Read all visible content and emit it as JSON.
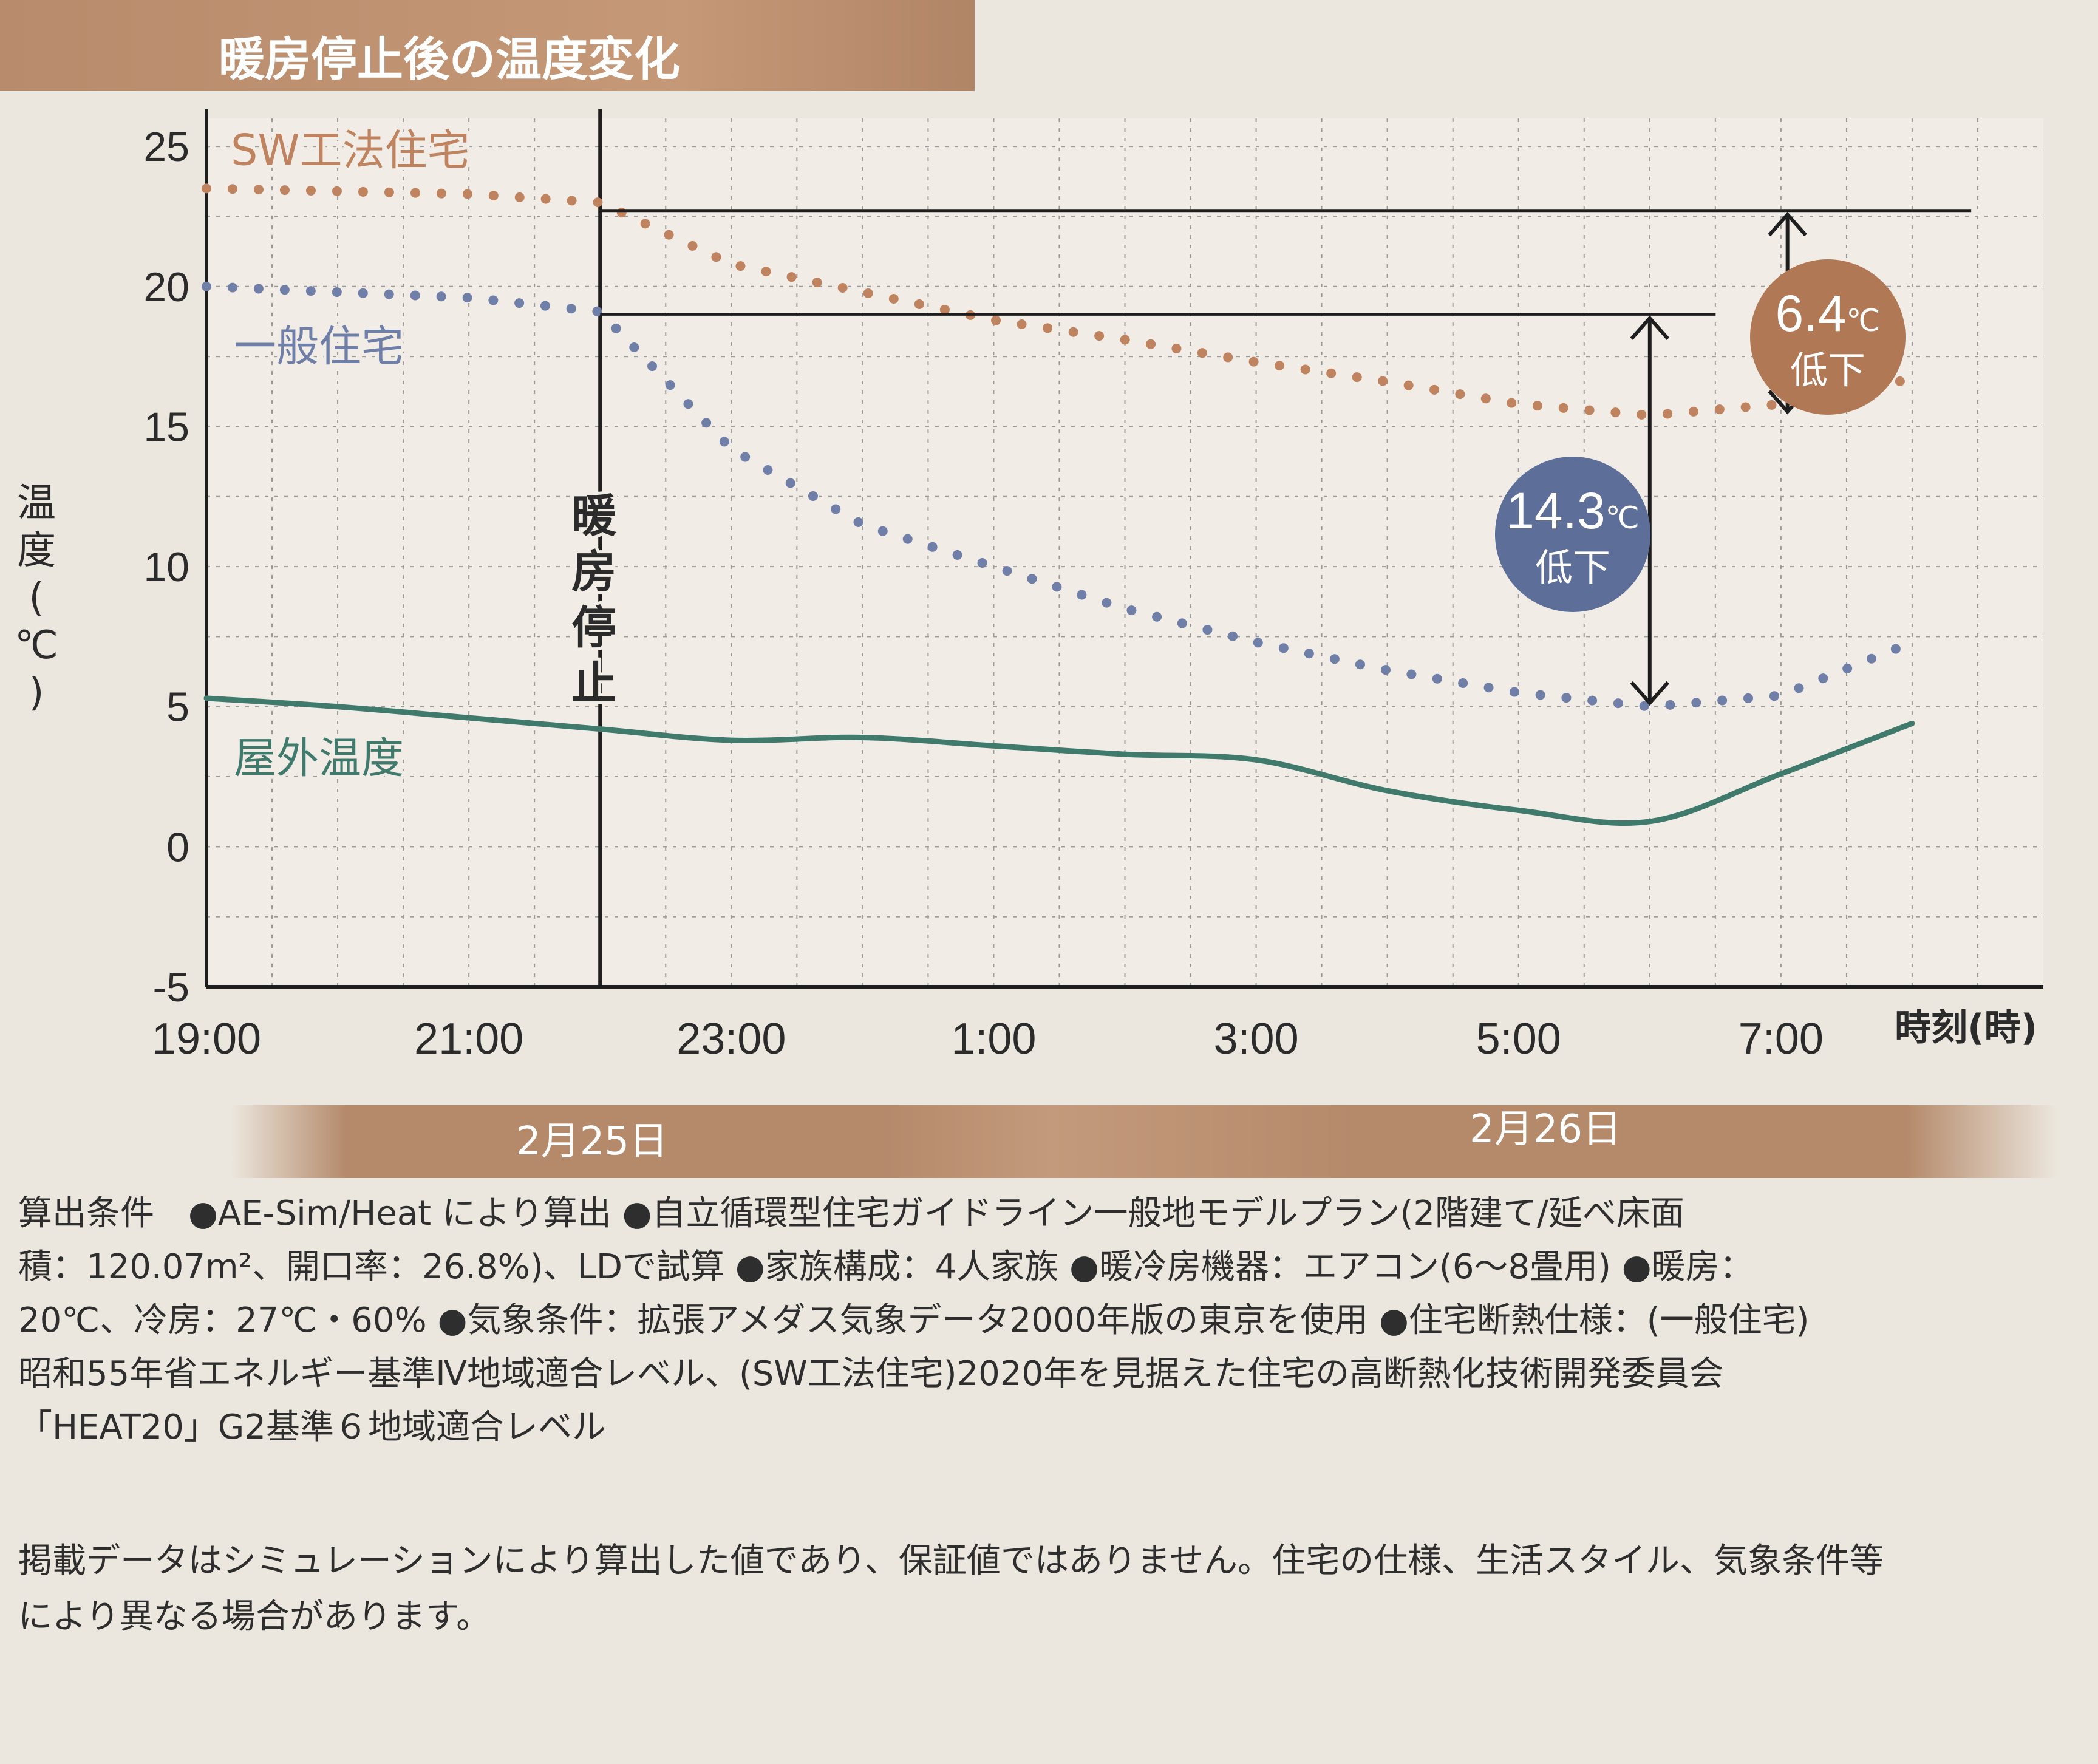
{
  "chart_data": {
    "type": "line",
    "title": "暖房停止後の温度変化",
    "ylabel": "温度(℃)",
    "xlabel": "時刻(時)",
    "ylim": [
      -5,
      26
    ],
    "xlim": [
      19,
      33
    ],
    "y_ticks": [
      "25",
      "20",
      "15",
      "10",
      "5",
      "0",
      "-5"
    ],
    "y_tick_values": [
      25,
      20,
      15,
      10,
      5,
      0,
      -5
    ],
    "x_ticks": [
      "19:00",
      "21:00",
      "23:00",
      "1:00",
      "3:00",
      "5:00",
      "7:00"
    ],
    "x_tick_values": [
      19,
      21,
      23,
      25,
      27,
      29,
      31
    ],
    "x_tick_times": [
      "19:00",
      "21:00",
      "23:00",
      "1:00",
      "3:00",
      "5:00",
      "7:00"
    ],
    "heating_stop": {
      "x": "22:00",
      "label": "暖房停止"
    },
    "series": [
      {
        "name": "SW工法住宅",
        "style": "dotted",
        "color": "#c0835f",
        "x": [
          "19:00",
          "20:00",
          "21:00",
          "22:00",
          "23:00",
          "0:00",
          "1:00",
          "2:00",
          "3:00",
          "4:00",
          "5:00",
          "6:00",
          "7:00",
          "8:00"
        ],
        "values": [
          23.5,
          23.4,
          23.3,
          23.0,
          20.8,
          19.8,
          18.8,
          18.1,
          17.3,
          16.6,
          15.8,
          15.4,
          15.8,
          16.7
        ]
      },
      {
        "name": "一般住宅",
        "style": "dotted",
        "color": "#6f7fa8",
        "x": [
          "19:00",
          "20:00",
          "21:00",
          "22:00",
          "23:00",
          "0:00",
          "1:00",
          "2:00",
          "3:00",
          "4:00",
          "5:00",
          "6:00",
          "7:00",
          "8:00"
        ],
        "values": [
          20.0,
          19.8,
          19.6,
          19.1,
          14.2,
          11.5,
          10.0,
          8.5,
          7.3,
          6.3,
          5.5,
          5.0,
          5.4,
          7.3
        ]
      },
      {
        "name": "屋外温度",
        "style": "solid",
        "color": "#3f7a6c",
        "x": [
          "19:00",
          "20:00",
          "21:00",
          "22:00",
          "23:00",
          "0:00",
          "1:00",
          "2:00",
          "3:00",
          "4:00",
          "5:00",
          "6:00",
          "7:00",
          "8:00"
        ],
        "values": [
          5.3,
          5.0,
          4.6,
          4.2,
          3.8,
          3.9,
          3.6,
          3.3,
          3.1,
          2.0,
          1.3,
          0.9,
          2.6,
          4.4
        ]
      }
    ],
    "annotations": [
      {
        "value": "6.4",
        "unit": "℃",
        "text": "低下",
        "color": "#b07855"
      },
      {
        "value": "14.3",
        "unit": "℃",
        "text": "低下",
        "color": "#5d6e98"
      }
    ]
  },
  "date_bands": [
    "2月25日",
    "2月26日"
  ],
  "notes": [
    "算出条件　●AE-Sim/Heat により算出 ●自立循環型住宅ガイドライン一般地モデルプラン(2階建て/延べ床面",
    "積：120.07m²、開口率：26.8%)、LDで試算 ●家族構成：4人家族 ●暖冷房機器：エアコン(6～8畳用) ●暖房：",
    "20℃、冷房：27℃・60% ●気象条件：拡張アメダス気象データ2000年版の東京を使用 ●住宅断熱仕様：(一般住宅)",
    "昭和55年省エネルギー基準Ⅳ地域適合レベル、(SW工法住宅)2020年を見据えた住宅の高断熱化技術開発委員会",
    "「HEAT20」G2基準６地域適合レベル"
  ],
  "disclaimer": [
    "掲載データはシミュレーションにより算出した値であり、保証値ではありません。住宅の仕様、生活スタイル、気象条件等",
    "により異なる場合があります。"
  ]
}
